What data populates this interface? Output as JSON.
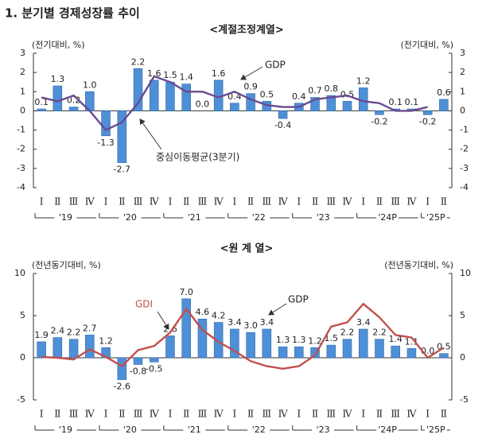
{
  "title": "1. 분기별 경제성장률 추이",
  "chart_data": [
    {
      "type": "bar",
      "subtitle": "<계절조정계열>",
      "ylabel": "(전기대비, %)",
      "y2label": "(전기대비, %)",
      "categories": [
        "Ⅰ",
        "Ⅱ",
        "Ⅲ",
        "Ⅳ",
        "Ⅰ",
        "Ⅱ",
        "Ⅲ",
        "Ⅳ",
        "Ⅰ",
        "Ⅱ",
        "Ⅲ",
        "Ⅳ",
        "Ⅰ",
        "Ⅱ",
        "Ⅲ",
        "Ⅳ",
        "Ⅰ",
        "Ⅱ",
        "Ⅲ",
        "Ⅳ",
        "Ⅰ",
        "Ⅱ",
        "Ⅲ",
        "Ⅳ",
        "Ⅰ",
        "Ⅱ"
      ],
      "x_groups": [
        "'19",
        "'20",
        "'21",
        "'22",
        "'23",
        "'24P",
        "'25P"
      ],
      "ylim": [
        -4,
        3
      ],
      "yticks": [
        -4,
        -3,
        -2,
        -1,
        0,
        1,
        2,
        3
      ],
      "y2lim": [
        -4,
        3
      ],
      "y2ticks": [
        -4,
        -3,
        -2,
        -1,
        0,
        1,
        2,
        3
      ],
      "series": [
        {
          "name": "GDP",
          "type": "bar",
          "color": "#4f8fd6",
          "values": [
            0.1,
            1.3,
            0.2,
            1.0,
            -1.3,
            -2.7,
            2.2,
            1.6,
            1.5,
            1.4,
            0.0,
            1.6,
            0.4,
            0.9,
            0.5,
            -0.4,
            0.4,
            0.7,
            0.8,
            0.5,
            1.2,
            -0.2,
            0.1,
            0.1,
            -0.2,
            0.6
          ],
          "value_labels": [
            "0.1",
            "1.3",
            "0.2",
            "1.0",
            "-1.3",
            "-2.7",
            "2.2",
            "1.6",
            "1.5",
            "1.4",
            "0.0",
            "1.6",
            "0.4",
            "0.9",
            "0.5",
            "-0.4",
            "0.4",
            "0.7",
            "0.8",
            "0.5",
            "1.2",
            "-0.2",
            "0.1",
            "0.1",
            "-0.2",
            "0.6"
          ]
        },
        {
          "name": "중심이동평균(3분기)",
          "type": "line",
          "color": "#6b4a8e",
          "values": [
            0.7,
            0.5,
            0.8,
            0.0,
            -1.0,
            -0.6,
            0.4,
            1.8,
            1.5,
            1.0,
            1.0,
            0.7,
            1.0,
            0.6,
            0.3,
            0.2,
            0.2,
            0.6,
            0.7,
            0.8,
            0.5,
            0.4,
            0.0,
            0.0,
            0.2,
            null
          ]
        }
      ]
    },
    {
      "type": "bar",
      "subtitle": "<원 계 열>",
      "ylabel": "(전년동기대비, %)",
      "y2label": "(전년동기대비, %)",
      "categories": [
        "Ⅰ",
        "Ⅱ",
        "Ⅲ",
        "Ⅳ",
        "Ⅰ",
        "Ⅱ",
        "Ⅲ",
        "Ⅳ",
        "Ⅰ",
        "Ⅱ",
        "Ⅲ",
        "Ⅳ",
        "Ⅰ",
        "Ⅱ",
        "Ⅲ",
        "Ⅳ",
        "Ⅰ",
        "Ⅱ",
        "Ⅲ",
        "Ⅳ",
        "Ⅰ",
        "Ⅱ",
        "Ⅲ",
        "Ⅳ",
        "Ⅰ",
        "Ⅱ"
      ],
      "x_groups": [
        "'19",
        "'20",
        "'21",
        "'22",
        "'23",
        "'24P",
        "'25P"
      ],
      "ylim": [
        -5,
        10
      ],
      "yticks": [
        -5,
        0,
        5,
        10
      ],
      "y2lim": [
        -5,
        10
      ],
      "y2ticks": [
        -5,
        0,
        5,
        10
      ],
      "series": [
        {
          "name": "GDP",
          "type": "bar",
          "color": "#4f8fd6",
          "values": [
            1.9,
            2.4,
            2.2,
            2.7,
            1.2,
            -2.6,
            -0.8,
            -0.5,
            2.6,
            7.0,
            4.6,
            4.2,
            3.4,
            3.0,
            3.4,
            1.3,
            1.3,
            1.2,
            1.5,
            2.2,
            3.4,
            2.2,
            1.4,
            1.1,
            0.0,
            0.5
          ],
          "value_labels": [
            "1.9",
            "2.4",
            "2.2",
            "2.7",
            "1.2",
            "-2.6",
            "-0.8",
            "-0.5",
            "2.6",
            "7.0",
            "4.6",
            "4.2",
            "3.4",
            "3.0",
            "3.4",
            "1.3",
            "1.3",
            "1.2",
            "1.5",
            "2.2",
            "3.4",
            "2.2",
            "1.4",
            "1.1",
            "0.0",
            "0.5"
          ]
        },
        {
          "name": "GDI",
          "type": "line",
          "color": "#c0504d",
          "values": [
            0.1,
            0.0,
            -0.2,
            1.0,
            0.1,
            -1.0,
            0.9,
            1.4,
            3.0,
            5.8,
            3.3,
            1.9,
            0.8,
            -0.4,
            -1.0,
            -1.3,
            -1.0,
            0.3,
            3.7,
            4.2,
            6.4,
            4.8,
            2.7,
            2.4,
            0.0,
            1.2
          ]
        }
      ]
    }
  ]
}
